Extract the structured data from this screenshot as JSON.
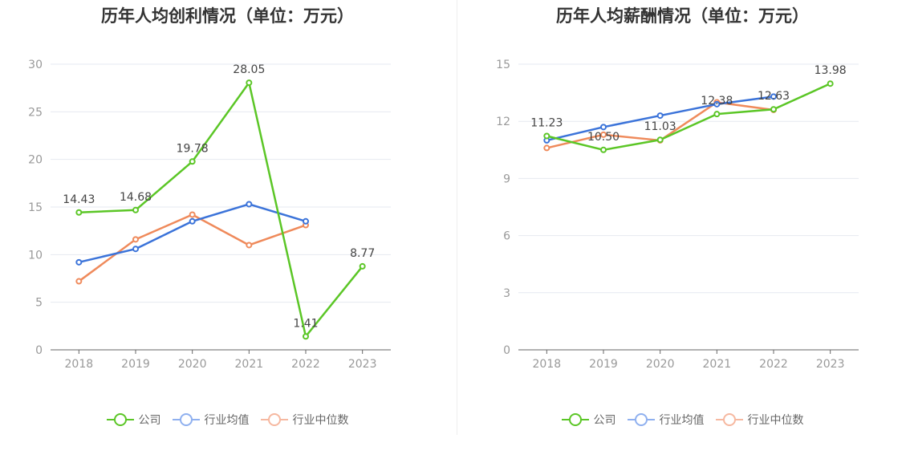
{
  "colors": {
    "company": "#5bc626",
    "industry_avg": "#3b73d9",
    "industry_median": "#ef8a5b",
    "legend_company": "#5bc626",
    "legend_avg": "#8fb0ef",
    "legend_median": "#f6b8a0"
  },
  "legend": {
    "company": "公司",
    "industry_avg": "行业均值",
    "industry_median": "行业中位数"
  },
  "chart_data": [
    {
      "type": "line",
      "title": "历年人均创利情况（单位：万元）",
      "categories": [
        "2018",
        "2019",
        "2020",
        "2021",
        "2022",
        "2023"
      ],
      "ylim": [
        0,
        30
      ],
      "yticks": [
        0,
        5,
        10,
        15,
        20,
        25,
        30
      ],
      "grid": true,
      "legend_position": "bottom",
      "series": [
        {
          "name": "公司",
          "color": "#5bc626",
          "values": [
            14.43,
            14.68,
            19.78,
            28.05,
            1.41,
            8.77
          ],
          "labels": [
            "14.43",
            "14.68",
            "19.78",
            "28.05",
            "1.41",
            "8.77"
          ]
        },
        {
          "name": "行业均值",
          "color": "#3b73d9",
          "values": [
            9.2,
            10.6,
            13.5,
            15.3,
            13.5,
            null
          ]
        },
        {
          "name": "行业中位数",
          "color": "#ef8a5b",
          "values": [
            7.2,
            11.6,
            14.2,
            11.0,
            13.1,
            null
          ]
        }
      ]
    },
    {
      "type": "line",
      "title": "历年人均薪酬情况（单位：万元）",
      "categories": [
        "2018",
        "2019",
        "2020",
        "2021",
        "2022",
        "2023"
      ],
      "ylim": [
        0,
        15
      ],
      "yticks": [
        0,
        3,
        6,
        9,
        12,
        15
      ],
      "grid": true,
      "legend_position": "bottom",
      "series": [
        {
          "name": "公司",
          "color": "#5bc626",
          "values": [
            11.23,
            10.5,
            11.03,
            12.38,
            12.63,
            13.98
          ],
          "labels": [
            "11.23",
            "10.50",
            "11.03",
            "12.38",
            "12.63",
            "13.98"
          ]
        },
        {
          "name": "行业均值",
          "color": "#3b73d9",
          "values": [
            11.0,
            11.7,
            12.3,
            12.9,
            13.3,
            null
          ]
        },
        {
          "name": "行业中位数",
          "color": "#ef8a5b",
          "values": [
            10.6,
            11.3,
            11.0,
            13.0,
            12.6,
            null
          ]
        }
      ]
    }
  ]
}
